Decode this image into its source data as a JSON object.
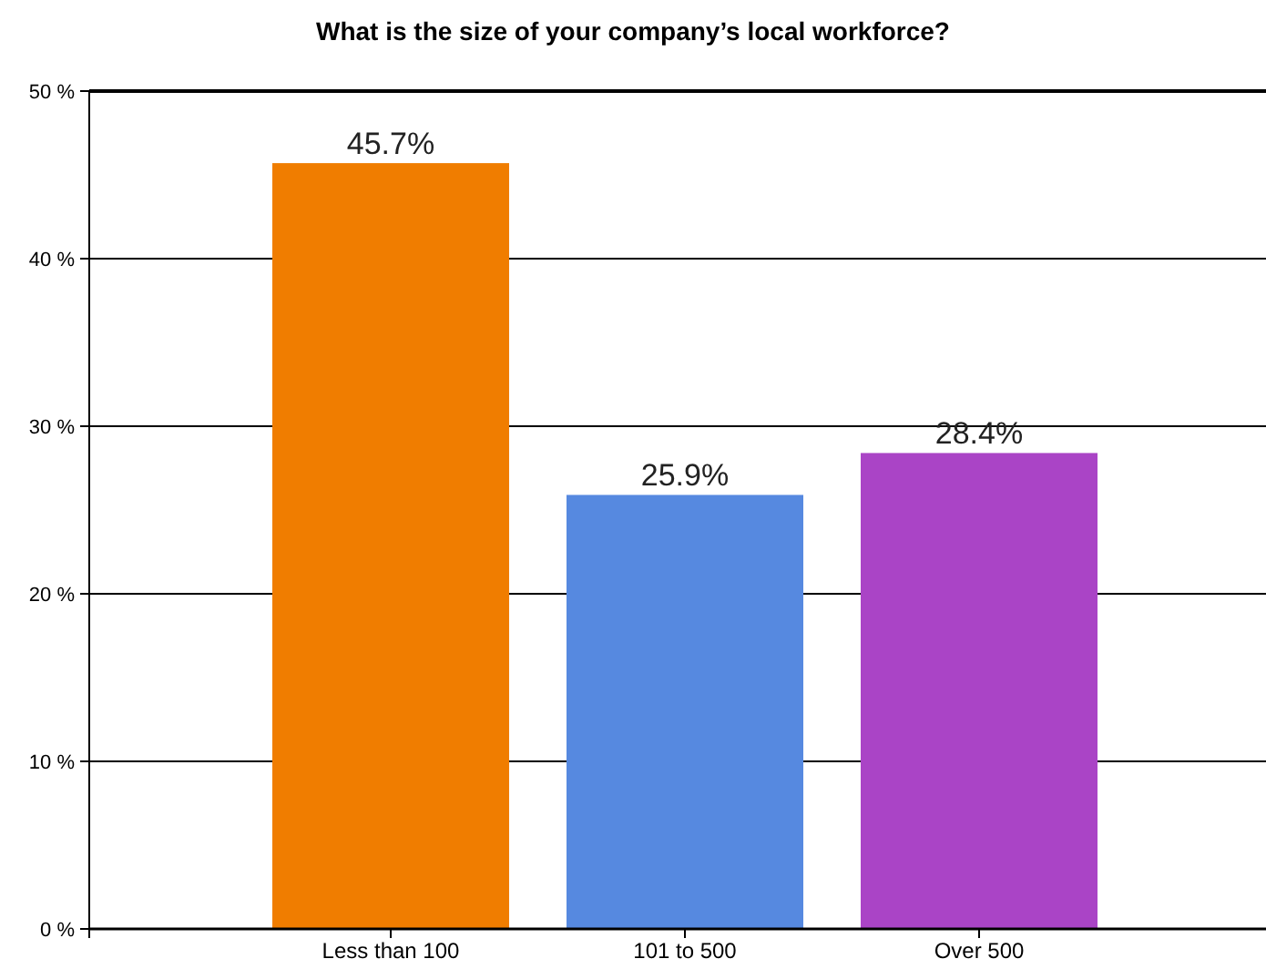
{
  "chart_data": {
    "type": "bar",
    "title": "What is the size of your company’s local workforce?",
    "categories": [
      "Less than 100",
      "101 to 500",
      "Over 500"
    ],
    "values": [
      45.7,
      25.9,
      28.4
    ],
    "colors": [
      "#f07d00",
      "#5689e0",
      "#aa44c6"
    ],
    "value_labels": [
      "45.7%",
      "25.9%",
      "28.4%"
    ],
    "ylim": [
      0,
      50
    ],
    "yticks": [
      {
        "value": 0,
        "label": "0 %"
      },
      {
        "value": 10,
        "label": "10 %"
      },
      {
        "value": 20,
        "label": "20 %"
      },
      {
        "value": 30,
        "label": "30 %"
      },
      {
        "value": 40,
        "label": "40 %"
      },
      {
        "value": 50,
        "label": "50 %"
      }
    ],
    "grid": "y"
  }
}
